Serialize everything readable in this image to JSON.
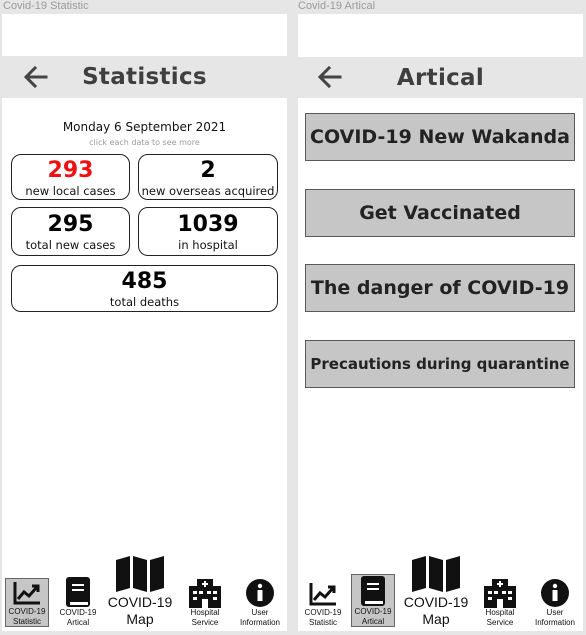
{
  "frames": {
    "left_label": "Covid-19 Statistic",
    "right_label": "Covid-19 Artical"
  },
  "statistics": {
    "title": "Statistics",
    "date": "Monday 6 September 2021",
    "hint": "click each data to see more",
    "cards": {
      "local": {
        "value": "293",
        "label": "new local cases"
      },
      "overseas": {
        "value": "2",
        "label": "new overseas acquired"
      },
      "total_new": {
        "value": "295",
        "label": "total new cases"
      },
      "hospital": {
        "value": "1039",
        "label": "in hospital"
      },
      "deaths": {
        "value": "485",
        "label": "total deaths"
      }
    }
  },
  "artical": {
    "title": "Artical",
    "buttons": [
      "COVID-19 New Wakanda",
      "Get Vaccinated",
      "The danger of COVID-19",
      "Precautions during quarantine"
    ]
  },
  "nav": {
    "statistic": "COVID-19 Statistic",
    "artical": "COVID-19 Artical",
    "map": "COVID-19 Map",
    "hospital": "Hospital Service",
    "user": "User Information"
  },
  "colors": {
    "accent_red": "#ee1111",
    "appbar_bg": "#e6e6e6",
    "button_bg": "#c6c6c6"
  },
  "icons": {
    "back": "arrow-left-icon",
    "statistic": "chart-line-icon",
    "artical": "book-icon",
    "map": "map-icon",
    "hospital": "hospital-icon",
    "user": "info-icon"
  }
}
